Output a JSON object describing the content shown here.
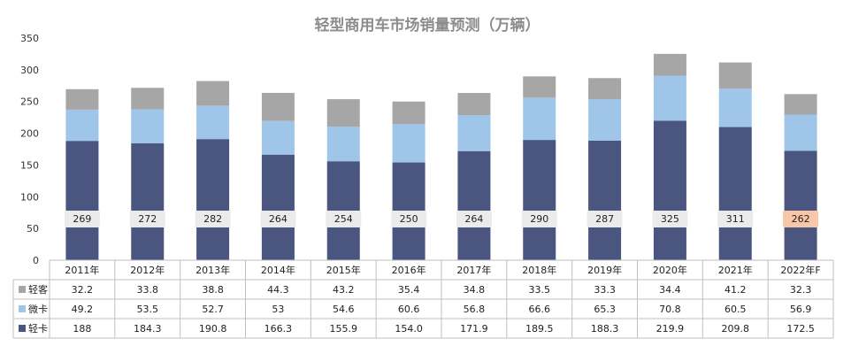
{
  "chart_data": {
    "type": "bar",
    "stacked": true,
    "title": "轻型商用车市场销量预测（万辆）",
    "categories": [
      "2011年",
      "2012年",
      "2013年",
      "2014年",
      "2015年",
      "2016年",
      "2017年",
      "2018年",
      "2019年",
      "2020年",
      "2021年",
      "2022年F"
    ],
    "series": [
      {
        "name": "轻卡",
        "color": "#4a5580",
        "values": [
          "188",
          "184.3",
          "190.8",
          "166.3",
          "155.9",
          "154.0",
          "171.9",
          "189.5",
          "188.3",
          "219.9",
          "209.8",
          "172.5"
        ]
      },
      {
        "name": "微卡",
        "color": "#9fc5e8",
        "values": [
          "49.2",
          "53.5",
          "52.7",
          "53",
          "54.6",
          "60.6",
          "56.8",
          "66.6",
          "65.3",
          "70.8",
          "60.5",
          "56.9"
        ]
      },
      {
        "name": "轻客",
        "color": "#a6a6a6",
        "values": [
          "32.2",
          "33.8",
          "38.8",
          "44.3",
          "43.2",
          "35.4",
          "34.8",
          "33.5",
          "33.3",
          "34.4",
          "41.2",
          "32.3"
        ]
      }
    ],
    "table_row_order": [
      "轻客",
      "微卡",
      "轻卡"
    ],
    "totals": [
      "269",
      "272",
      "282",
      "264",
      "254",
      "250",
      "264",
      "290",
      "287",
      "325",
      "311",
      "262"
    ],
    "highlight_total_index": 11,
    "highlight_color": "#f8c6a8",
    "total_label_bg": "#ebebeb",
    "yticks": [
      "0",
      "50",
      "100",
      "150",
      "200",
      "250",
      "300",
      "350"
    ],
    "ylim": [
      0,
      350
    ],
    "grid": false,
    "legend": "data-table"
  }
}
